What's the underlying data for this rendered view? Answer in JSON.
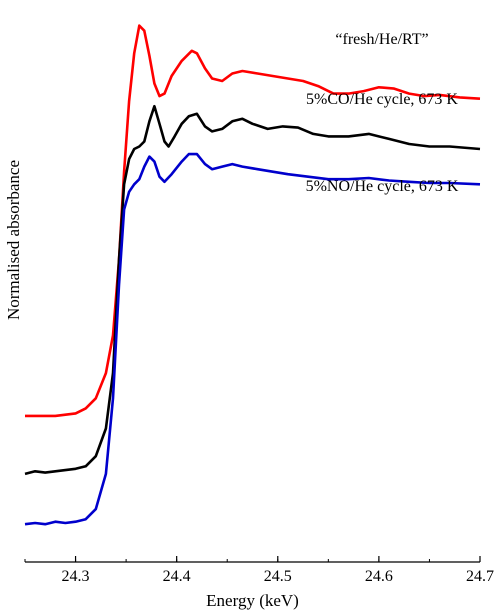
{
  "chart_data": {
    "type": "line",
    "xlabel": "Energy (keV)",
    "ylabel": "Normalised absorbance",
    "xlim": [
      24.25,
      24.7
    ],
    "ylim": [
      -0.15,
      2.05
    ],
    "x_ticks": [
      "24.3",
      "24.4",
      "24.5",
      "24.6",
      "24.7"
    ],
    "y_ticks_labeled": false,
    "grid": false,
    "legend": "none (annotations next to curves)",
    "series": [
      {
        "name": "“fresh/He/RT”",
        "color": "#ff0000",
        "points": [
          [
            24.25,
            0.43
          ],
          [
            24.28,
            0.43
          ],
          [
            24.3,
            0.44
          ],
          [
            24.31,
            0.46
          ],
          [
            24.32,
            0.5
          ],
          [
            24.33,
            0.6
          ],
          [
            24.337,
            0.75
          ],
          [
            24.343,
            1.05
          ],
          [
            24.348,
            1.4
          ],
          [
            24.353,
            1.68
          ],
          [
            24.358,
            1.87
          ],
          [
            24.363,
            1.98
          ],
          [
            24.368,
            1.96
          ],
          [
            24.373,
            1.86
          ],
          [
            24.378,
            1.75
          ],
          [
            24.383,
            1.7
          ],
          [
            24.388,
            1.71
          ],
          [
            24.395,
            1.78
          ],
          [
            24.405,
            1.84
          ],
          [
            24.415,
            1.88
          ],
          [
            24.42,
            1.87
          ],
          [
            24.428,
            1.81
          ],
          [
            24.435,
            1.77
          ],
          [
            24.445,
            1.76
          ],
          [
            24.455,
            1.79
          ],
          [
            24.465,
            1.8
          ],
          [
            24.48,
            1.79
          ],
          [
            24.495,
            1.78
          ],
          [
            24.51,
            1.77
          ],
          [
            24.525,
            1.76
          ],
          [
            24.54,
            1.74
          ],
          [
            24.555,
            1.71
          ],
          [
            24.57,
            1.71
          ],
          [
            24.585,
            1.72
          ],
          [
            24.6,
            1.735
          ],
          [
            24.615,
            1.73
          ],
          [
            24.63,
            1.71
          ],
          [
            24.645,
            1.7
          ],
          [
            24.66,
            1.705
          ],
          [
            24.68,
            1.695
          ],
          [
            24.7,
            1.69
          ]
        ]
      },
      {
        "name": "5%CO/He cycle, 673 K",
        "color": "#000000",
        "points": [
          [
            24.25,
            0.2
          ],
          [
            24.26,
            0.21
          ],
          [
            24.27,
            0.205
          ],
          [
            24.28,
            0.21
          ],
          [
            24.29,
            0.215
          ],
          [
            24.3,
            0.22
          ],
          [
            24.31,
            0.23
          ],
          [
            24.32,
            0.27
          ],
          [
            24.33,
            0.38
          ],
          [
            24.337,
            0.6
          ],
          [
            24.343,
            1.05
          ],
          [
            24.348,
            1.35
          ],
          [
            24.353,
            1.45
          ],
          [
            24.358,
            1.49
          ],
          [
            24.363,
            1.5
          ],
          [
            24.368,
            1.52
          ],
          [
            24.373,
            1.6
          ],
          [
            24.378,
            1.66
          ],
          [
            24.383,
            1.59
          ],
          [
            24.388,
            1.52
          ],
          [
            24.392,
            1.5
          ],
          [
            24.398,
            1.54
          ],
          [
            24.405,
            1.59
          ],
          [
            24.412,
            1.62
          ],
          [
            24.42,
            1.63
          ],
          [
            24.428,
            1.58
          ],
          [
            24.435,
            1.56
          ],
          [
            24.445,
            1.57
          ],
          [
            24.455,
            1.6
          ],
          [
            24.465,
            1.61
          ],
          [
            24.475,
            1.59
          ],
          [
            24.49,
            1.57
          ],
          [
            24.505,
            1.58
          ],
          [
            24.52,
            1.575
          ],
          [
            24.535,
            1.55
          ],
          [
            24.55,
            1.54
          ],
          [
            24.57,
            1.54
          ],
          [
            24.59,
            1.55
          ],
          [
            24.61,
            1.53
          ],
          [
            24.63,
            1.51
          ],
          [
            24.65,
            1.5
          ],
          [
            24.67,
            1.5
          ],
          [
            24.7,
            1.49
          ]
        ]
      },
      {
        "name": "5%NO/He cycle, 673 K",
        "color": "#0000cc",
        "points": [
          [
            24.25,
            0.0
          ],
          [
            24.26,
            0.005
          ],
          [
            24.27,
            0.0
          ],
          [
            24.28,
            0.01
          ],
          [
            24.29,
            0.005
          ],
          [
            24.3,
            0.01
          ],
          [
            24.31,
            0.02
          ],
          [
            24.32,
            0.06
          ],
          [
            24.33,
            0.2
          ],
          [
            24.337,
            0.5
          ],
          [
            24.343,
            0.95
          ],
          [
            24.348,
            1.25
          ],
          [
            24.353,
            1.32
          ],
          [
            24.358,
            1.35
          ],
          [
            24.363,
            1.37
          ],
          [
            24.368,
            1.42
          ],
          [
            24.373,
            1.46
          ],
          [
            24.378,
            1.44
          ],
          [
            24.383,
            1.38
          ],
          [
            24.388,
            1.36
          ],
          [
            24.395,
            1.39
          ],
          [
            24.405,
            1.44
          ],
          [
            24.412,
            1.47
          ],
          [
            24.42,
            1.47
          ],
          [
            24.428,
            1.43
          ],
          [
            24.435,
            1.41
          ],
          [
            24.445,
            1.42
          ],
          [
            24.455,
            1.43
          ],
          [
            24.465,
            1.42
          ],
          [
            24.48,
            1.41
          ],
          [
            24.495,
            1.4
          ],
          [
            24.51,
            1.39
          ],
          [
            24.53,
            1.38
          ],
          [
            24.55,
            1.37
          ],
          [
            24.57,
            1.37
          ],
          [
            24.59,
            1.375
          ],
          [
            24.61,
            1.365
          ],
          [
            24.63,
            1.36
          ],
          [
            24.65,
            1.355
          ],
          [
            24.67,
            1.355
          ],
          [
            24.7,
            1.35
          ]
        ]
      }
    ],
    "annotations": [
      {
        "text": "“fresh/He/RT”",
        "series": 0
      },
      {
        "text": "5%CO/He cycle, 673 K",
        "series": 1
      },
      {
        "text": "5%NO/He cycle, 673 K",
        "series": 2
      }
    ]
  }
}
